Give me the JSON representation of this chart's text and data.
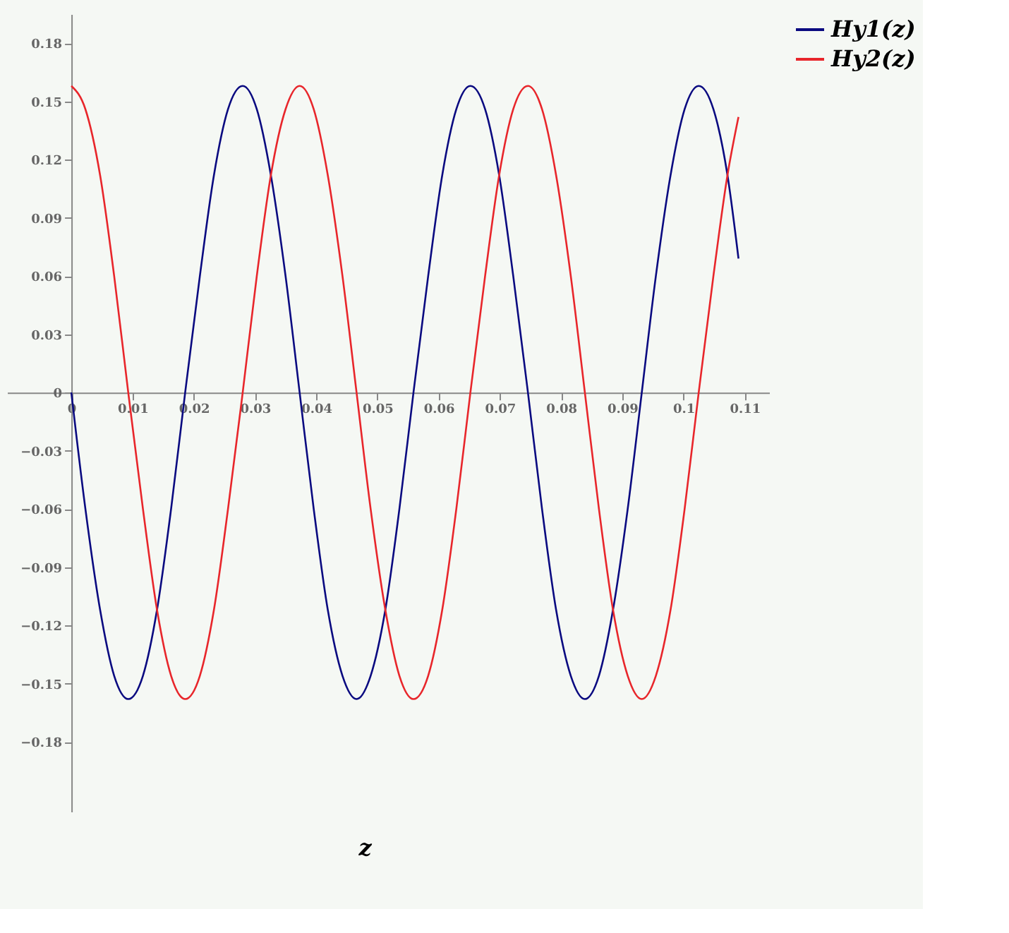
{
  "chart_data": {
    "type": "line",
    "xlabel": "z",
    "x": [
      0,
      0.0023,
      0.0047,
      0.007,
      0.0093,
      0.0117,
      0.014,
      0.0163,
      0.0186,
      0.021,
      0.0233,
      0.0256,
      0.028,
      0.0303,
      0.0326,
      0.035,
      0.0373,
      0.0396,
      0.0419,
      0.0443,
      0.0466,
      0.0489,
      0.0513,
      0.0536,
      0.0559,
      0.0583,
      0.0606,
      0.0629,
      0.0652,
      0.0676,
      0.0699,
      0.0722,
      0.0746,
      0.0769,
      0.0792,
      0.0816,
      0.0839,
      0.0862,
      0.0885,
      0.0909,
      0.0932,
      0.0955,
      0.0979,
      0.1002,
      0.1025,
      0.1049,
      0.1072,
      0.109
    ],
    "series": [
      {
        "name": "Hy1(z)",
        "color": "#0a0a80",
        "values": [
          0,
          -0.06,
          -0.112,
          -0.146,
          -0.158,
          -0.146,
          -0.112,
          -0.06,
          0,
          0.06,
          0.112,
          0.146,
          0.158,
          0.146,
          0.112,
          0.06,
          0,
          -0.06,
          -0.112,
          -0.146,
          -0.158,
          -0.146,
          -0.112,
          -0.06,
          0,
          0.06,
          0.112,
          0.146,
          0.158,
          0.146,
          0.112,
          0.06,
          0,
          -0.06,
          -0.112,
          -0.146,
          -0.158,
          -0.146,
          -0.112,
          -0.06,
          0,
          0.06,
          0.112,
          0.146,
          0.158,
          0.146,
          0.112,
          0.069
        ]
      },
      {
        "name": "Hy2(z)",
        "color": "#e8262b",
        "values": [
          0.158,
          0.146,
          0.112,
          0.06,
          0,
          -0.06,
          -0.112,
          -0.146,
          -0.158,
          -0.146,
          -0.112,
          -0.06,
          0,
          0.06,
          0.112,
          0.146,
          0.158,
          0.146,
          0.112,
          0.06,
          0,
          -0.06,
          -0.112,
          -0.146,
          -0.158,
          -0.146,
          -0.112,
          -0.06,
          0,
          0.06,
          0.112,
          0.146,
          0.158,
          0.146,
          0.112,
          0.06,
          0,
          -0.06,
          -0.112,
          -0.146,
          -0.158,
          -0.146,
          -0.112,
          -0.06,
          0,
          0.06,
          0.112,
          0.142
        ]
      }
    ],
    "xlim": [
      -0.0105,
      0.114
    ],
    "ylim": [
      -0.216,
      0.195
    ],
    "xticks": [
      0,
      0.01,
      0.02,
      0.03,
      0.04,
      0.05,
      0.06,
      0.07,
      0.08,
      0.09,
      0.1,
      0.11
    ],
    "yticks": [
      -0.18,
      -0.15,
      -0.12,
      -0.09,
      -0.06,
      -0.03,
      0,
      0.03,
      0.06,
      0.09,
      0.12,
      0.15,
      0.18
    ],
    "grid": false,
    "legend": "right",
    "line_style": "solid",
    "marker": "none"
  }
}
